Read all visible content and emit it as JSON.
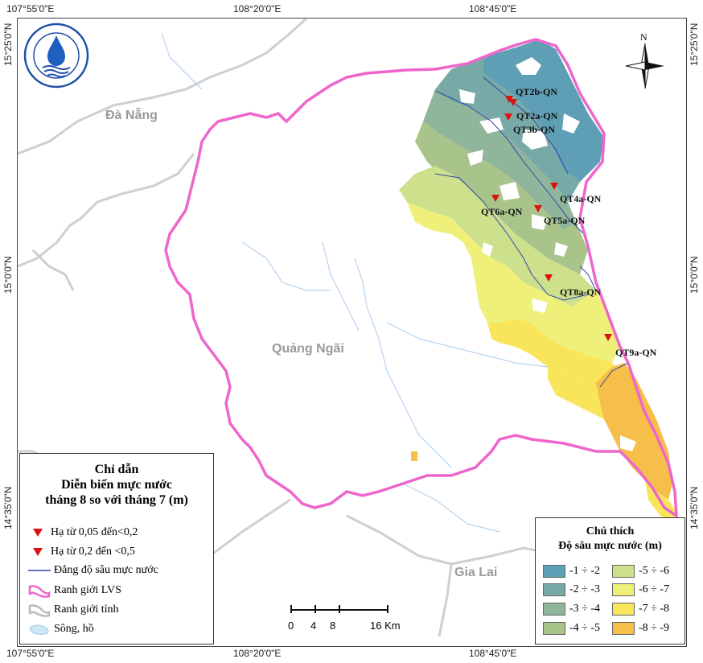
{
  "coords": {
    "top": [
      "107°55'0\"E",
      "108°20'0\"E",
      "108°45'0\"E"
    ],
    "bottom": [
      "107°55'0\"E",
      "108°20'0\"E",
      "108°45'0\"E"
    ],
    "left": [
      "15°25'0\"N",
      "15°0'0\"N",
      "14°35'0\"N"
    ],
    "right": [
      "15°25'0\"N",
      "15°0'0\"N",
      "14°35'0\"N"
    ]
  },
  "regions": {
    "da_nang": "Đà Nẵng",
    "quang_ngai": "Quảng Ngãi",
    "gia_lai": "Gia Lai"
  },
  "stations": [
    {
      "label": "QT2b-QN"
    },
    {
      "label": "QT2a-QN"
    },
    {
      "label": "QT3b-QN"
    },
    {
      "label": "QT4a-QN"
    },
    {
      "label": "QT6a-QN"
    },
    {
      "label": "QT5a-QN"
    },
    {
      "label": "QT8a-QN"
    },
    {
      "label": "QT9a-QN"
    }
  ],
  "north_label": "N",
  "scale": {
    "ticks": [
      "0",
      "4",
      "8",
      "16 Km"
    ]
  },
  "legend_left": {
    "title_1": "Chỉ dẫn",
    "title_2": "Diễn biến mực  nước",
    "title_3": "tháng 8 so với tháng 7 (m)",
    "items": [
      {
        "label": "Hạ từ 0,05 đến<0,2"
      },
      {
        "label": "Hạ từ 0,2 đến <0,5"
      },
      {
        "label": "Đẳng độ sâu mực nước"
      },
      {
        "label": "Ranh giới LVS"
      },
      {
        "label": "Ranh giới tỉnh"
      },
      {
        "label": "Sông, hồ"
      }
    ]
  },
  "legend_right": {
    "title_1": "Chú thích",
    "title_2": "Độ sâu mực nước (m)",
    "classes": [
      {
        "label": "-1 ÷ -2",
        "color": "#5e9fb5"
      },
      {
        "label": "-2 ÷ -3",
        "color": "#77aaa6"
      },
      {
        "label": "-3 ÷ -4",
        "color": "#8fb69a"
      },
      {
        "label": "-4 ÷ -5",
        "color": "#a8c48a"
      },
      {
        "label": "-5 ÷ -6",
        "color": "#cde08c"
      },
      {
        "label": "-6 ÷ -7",
        "color": "#eef07a"
      },
      {
        "label": "-7 ÷ -8",
        "color": "#f8e55a"
      },
      {
        "label": "-8 ÷ -9",
        "color": "#f5bf4a"
      }
    ]
  },
  "colors": {
    "lvs_boundary": "#ee66cc",
    "province_boundary": "#c8c8c8",
    "river": "#9ec6ea",
    "station_marker": "#dd1111",
    "isoline": "#3344aa"
  }
}
